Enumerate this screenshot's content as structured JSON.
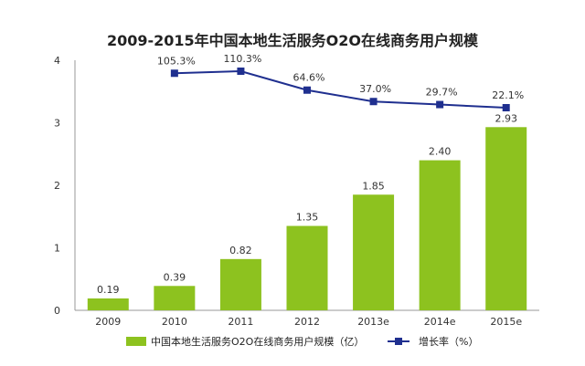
{
  "chart_data": {
    "type": "bar",
    "title": "2009-2015年中国本地生活服务O2O在线商务用户规模",
    "categories": [
      "2009",
      "2010",
      "2011",
      "2012",
      "2013e",
      "2014e",
      "2015e"
    ],
    "ylim": [
      0,
      4
    ],
    "yticks": [
      "0",
      "1",
      "2",
      "3",
      "4"
    ],
    "grid": false,
    "legend_position": "bottom",
    "series": [
      {
        "name": "中国本地生活服务O2O在线商务用户规模（亿）",
        "type": "bar",
        "color": "#8dc21f",
        "values": [
          0.19,
          0.39,
          0.82,
          1.35,
          1.85,
          2.4,
          2.93
        ],
        "labels": [
          "0.19",
          "0.39",
          "0.82",
          "1.35",
          "1.85",
          "2.40",
          "2.93"
        ]
      },
      {
        "name": "增长率（%）",
        "type": "line",
        "color": "#1f2f8f",
        "values": [
          null,
          105.3,
          110.3,
          64.6,
          37.0,
          29.7,
          22.1
        ],
        "labels": [
          "",
          "105.3%",
          "110.3%",
          "64.6%",
          "37.0%",
          "29.7%",
          "22.1%"
        ]
      }
    ]
  }
}
